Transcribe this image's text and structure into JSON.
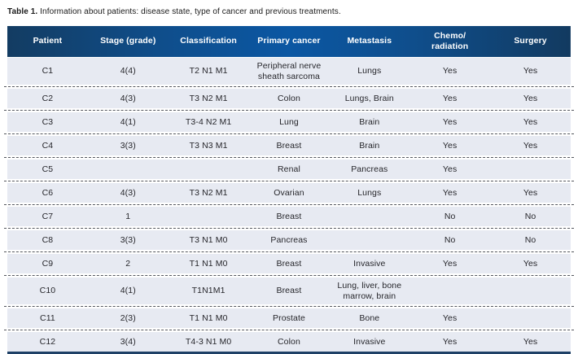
{
  "caption": {
    "label": "Table 1.",
    "text": " Information about patients: disease state, type of cancer and previous treatments."
  },
  "table": {
    "columns": [
      "Patient",
      "Stage (grade)",
      "Classification",
      "Primary cancer",
      "Metastasis",
      "Chemo/\nradiation",
      "Surgery"
    ],
    "rows": [
      [
        "C1",
        "4(4)",
        "T2 N1 M1",
        "Peripheral nerve sheath sarcoma",
        "Lungs",
        "Yes",
        "Yes"
      ],
      [
        "C2",
        "4(3)",
        "T3 N2 M1",
        "Colon",
        "Lungs, Brain",
        "Yes",
        "Yes"
      ],
      [
        "C3",
        "4(1)",
        "T3-4 N2 M1",
        "Lung",
        "Brain",
        "Yes",
        "Yes"
      ],
      [
        "C4",
        "3(3)",
        "T3 N3 M1",
        "Breast",
        "Brain",
        "Yes",
        "Yes"
      ],
      [
        "C5",
        "",
        "",
        "Renal",
        "Pancreas",
        "Yes",
        ""
      ],
      [
        "C6",
        "4(3)",
        "T3 N2 M1",
        "Ovarian",
        "Lungs",
        "Yes",
        "Yes"
      ],
      [
        "C7",
        "1",
        "",
        "Breast",
        "",
        "No",
        "No"
      ],
      [
        "C8",
        "3(3)",
        "T3 N1 M0",
        "Pancreas",
        "",
        "No",
        "No"
      ],
      [
        "C9",
        "2",
        "T1 N1 M0",
        "Breast",
        "Invasive",
        "Yes",
        "Yes"
      ],
      [
        "C10",
        "4(1)",
        "T1N1M1",
        "Breast",
        "Lung, liver, bone marrow, brain",
        "",
        ""
      ],
      [
        "C11",
        "2(3)",
        "T1 N1 M0",
        "Prostate",
        "Bone",
        "Yes",
        ""
      ],
      [
        "C12",
        "3(4)",
        "T4-3 N1 M0",
        "Colon",
        "Invasive",
        "Yes",
        "Yes"
      ]
    ],
    "colors": {
      "header_edge": "#133c62",
      "header_center": "#0b57a3",
      "row_bg": "#e7eaf2",
      "bottom_border": "#1e4066",
      "header_text": "#ffffff",
      "cell_text": "#26262b",
      "dash": "#54575e"
    }
  }
}
